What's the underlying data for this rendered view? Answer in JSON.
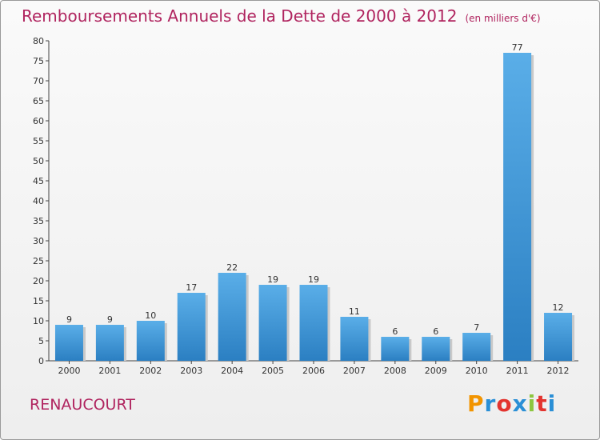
{
  "chart_data": {
    "type": "bar",
    "title": "Remboursements Annuels de la Dette de 2000 à 2012",
    "subtitle": "(en milliers d'€)",
    "categories": [
      "2000",
      "2001",
      "2002",
      "2003",
      "2004",
      "2005",
      "2006",
      "2007",
      "2008",
      "2009",
      "2010",
      "2011",
      "2012"
    ],
    "values": [
      9,
      9,
      10,
      17,
      22,
      19,
      19,
      11,
      6,
      6,
      7,
      77,
      12
    ],
    "ylim": [
      0,
      80
    ],
    "yticks": [
      0,
      5,
      10,
      15,
      20,
      25,
      30,
      35,
      40,
      45,
      50,
      55,
      60,
      65,
      70,
      75,
      80
    ],
    "grid": false,
    "bar_color": "#4fa2df"
  },
  "footer": {
    "town": "RENAUCOURT",
    "logo": {
      "letters": [
        "P",
        "r",
        "o",
        "x",
        "i",
        "t",
        "i"
      ],
      "colors": [
        "#f29400",
        "#2a8fd6",
        "#e3342f",
        "#2a8fd6",
        "#8dc63f",
        "#e3342f",
        "#2a8fd6"
      ]
    }
  }
}
